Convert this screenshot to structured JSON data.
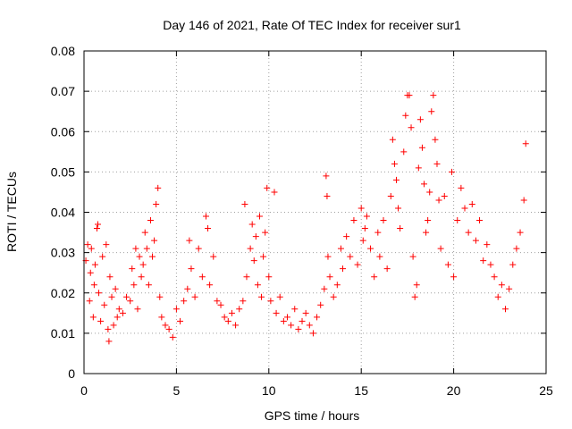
{
  "chart_data": {
    "type": "scatter",
    "title": "Day 146 of 2021, Rate Of TEC Index for receiver sur1",
    "xlabel": "GPS time / hours",
    "ylabel": "ROTI / TECUs",
    "xlim": [
      0,
      25
    ],
    "ylim": [
      0,
      0.08
    ],
    "xticks": [
      0,
      5,
      10,
      15,
      20,
      25
    ],
    "yticks": [
      0,
      0.01,
      0.02,
      0.03,
      0.04,
      0.05,
      0.06,
      0.07,
      0.08
    ],
    "xtick_labels": [
      "0",
      "5",
      "10",
      "15",
      "20",
      "25"
    ],
    "ytick_labels": [
      "0",
      "0.01",
      "0.02",
      "0.03",
      "0.04",
      "0.05",
      "0.06",
      "0.07",
      "0.08"
    ],
    "grid": true,
    "legend": false,
    "marker": "plus",
    "color": "#ff0000",
    "series": [
      {
        "points": [
          [
            0.1,
            0.028
          ],
          [
            0.2,
            0.032
          ],
          [
            0.3,
            0.018
          ],
          [
            0.35,
            0.025
          ],
          [
            0.4,
            0.031
          ],
          [
            0.5,
            0.014
          ],
          [
            0.55,
            0.022
          ],
          [
            0.6,
            0.027
          ],
          [
            0.7,
            0.036
          ],
          [
            0.75,
            0.037
          ],
          [
            0.8,
            0.02
          ],
          [
            0.9,
            0.013
          ],
          [
            1.0,
            0.029
          ],
          [
            1.1,
            0.017
          ],
          [
            1.2,
            0.032
          ],
          [
            1.3,
            0.011
          ],
          [
            1.35,
            0.008
          ],
          [
            1.4,
            0.024
          ],
          [
            1.5,
            0.019
          ],
          [
            1.6,
            0.012
          ],
          [
            1.7,
            0.021
          ],
          [
            1.8,
            0.014
          ],
          [
            1.9,
            0.016
          ],
          [
            2.1,
            0.015
          ],
          [
            2.3,
            0.019
          ],
          [
            2.5,
            0.018
          ],
          [
            2.6,
            0.026
          ],
          [
            2.7,
            0.022
          ],
          [
            2.8,
            0.031
          ],
          [
            2.9,
            0.016
          ],
          [
            3.0,
            0.029
          ],
          [
            3.1,
            0.024
          ],
          [
            3.2,
            0.027
          ],
          [
            3.3,
            0.035
          ],
          [
            3.4,
            0.031
          ],
          [
            3.5,
            0.022
          ],
          [
            3.6,
            0.038
          ],
          [
            3.7,
            0.029
          ],
          [
            3.8,
            0.033
          ],
          [
            3.9,
            0.042
          ],
          [
            4.0,
            0.046
          ],
          [
            4.1,
            0.019
          ],
          [
            4.2,
            0.014
          ],
          [
            4.4,
            0.012
          ],
          [
            4.6,
            0.011
          ],
          [
            4.8,
            0.009
          ],
          [
            5.0,
            0.016
          ],
          [
            5.2,
            0.013
          ],
          [
            5.4,
            0.018
          ],
          [
            5.6,
            0.021
          ],
          [
            5.7,
            0.033
          ],
          [
            5.8,
            0.026
          ],
          [
            6.0,
            0.019
          ],
          [
            6.2,
            0.031
          ],
          [
            6.4,
            0.024
          ],
          [
            6.6,
            0.039
          ],
          [
            6.7,
            0.036
          ],
          [
            6.8,
            0.022
          ],
          [
            7.0,
            0.029
          ],
          [
            7.2,
            0.018
          ],
          [
            7.4,
            0.017
          ],
          [
            7.6,
            0.014
          ],
          [
            7.8,
            0.013
          ],
          [
            8.0,
            0.015
          ],
          [
            8.2,
            0.012
          ],
          [
            8.4,
            0.016
          ],
          [
            8.6,
            0.018
          ],
          [
            8.7,
            0.042
          ],
          [
            8.8,
            0.024
          ],
          [
            9.0,
            0.031
          ],
          [
            9.1,
            0.037
          ],
          [
            9.2,
            0.028
          ],
          [
            9.3,
            0.034
          ],
          [
            9.4,
            0.022
          ],
          [
            9.5,
            0.039
          ],
          [
            9.6,
            0.019
          ],
          [
            9.7,
            0.029
          ],
          [
            9.8,
            0.035
          ],
          [
            9.9,
            0.046
          ],
          [
            10.0,
            0.024
          ],
          [
            10.1,
            0.018
          ],
          [
            10.3,
            0.045
          ],
          [
            10.4,
            0.015
          ],
          [
            10.6,
            0.019
          ],
          [
            10.8,
            0.013
          ],
          [
            11.0,
            0.014
          ],
          [
            11.2,
            0.012
          ],
          [
            11.4,
            0.016
          ],
          [
            11.6,
            0.011
          ],
          [
            11.8,
            0.013
          ],
          [
            12.0,
            0.015
          ],
          [
            12.2,
            0.012
          ],
          [
            12.4,
            0.01
          ],
          [
            12.6,
            0.014
          ],
          [
            12.8,
            0.017
          ],
          [
            13.0,
            0.021
          ],
          [
            13.1,
            0.049
          ],
          [
            13.15,
            0.044
          ],
          [
            13.2,
            0.029
          ],
          [
            13.3,
            0.024
          ],
          [
            13.5,
            0.019
          ],
          [
            13.7,
            0.022
          ],
          [
            13.9,
            0.031
          ],
          [
            14.0,
            0.026
          ],
          [
            14.2,
            0.034
          ],
          [
            14.4,
            0.029
          ],
          [
            14.6,
            0.038
          ],
          [
            14.8,
            0.027
          ],
          [
            15.0,
            0.041
          ],
          [
            15.1,
            0.033
          ],
          [
            15.2,
            0.036
          ],
          [
            15.3,
            0.039
          ],
          [
            15.5,
            0.031
          ],
          [
            15.7,
            0.024
          ],
          [
            15.9,
            0.035
          ],
          [
            16.0,
            0.029
          ],
          [
            16.2,
            0.038
          ],
          [
            16.4,
            0.026
          ],
          [
            16.6,
            0.044
          ],
          [
            16.7,
            0.058
          ],
          [
            16.8,
            0.052
          ],
          [
            16.9,
            0.048
          ],
          [
            17.0,
            0.041
          ],
          [
            17.1,
            0.036
          ],
          [
            17.3,
            0.055
          ],
          [
            17.4,
            0.064
          ],
          [
            17.5,
            0.069
          ],
          [
            17.6,
            0.069
          ],
          [
            17.7,
            0.061
          ],
          [
            17.8,
            0.029
          ],
          [
            17.9,
            0.019
          ],
          [
            18.0,
            0.022
          ],
          [
            18.1,
            0.051
          ],
          [
            18.2,
            0.063
          ],
          [
            18.3,
            0.056
          ],
          [
            18.4,
            0.047
          ],
          [
            18.5,
            0.035
          ],
          [
            18.6,
            0.038
          ],
          [
            18.7,
            0.045
          ],
          [
            18.8,
            0.065
          ],
          [
            18.9,
            0.069
          ],
          [
            19.0,
            0.058
          ],
          [
            19.1,
            0.052
          ],
          [
            19.2,
            0.043
          ],
          [
            19.3,
            0.031
          ],
          [
            19.5,
            0.044
          ],
          [
            19.7,
            0.027
          ],
          [
            19.9,
            0.05
          ],
          [
            20.0,
            0.024
          ],
          [
            20.2,
            0.038
          ],
          [
            20.4,
            0.046
          ],
          [
            20.6,
            0.041
          ],
          [
            20.8,
            0.035
          ],
          [
            21.0,
            0.042
          ],
          [
            21.2,
            0.033
          ],
          [
            21.4,
            0.038
          ],
          [
            21.6,
            0.028
          ],
          [
            21.8,
            0.032
          ],
          [
            22.0,
            0.027
          ],
          [
            22.2,
            0.024
          ],
          [
            22.4,
            0.019
          ],
          [
            22.6,
            0.022
          ],
          [
            22.8,
            0.016
          ],
          [
            23.0,
            0.021
          ],
          [
            23.2,
            0.027
          ],
          [
            23.4,
            0.031
          ],
          [
            23.6,
            0.035
          ],
          [
            23.8,
            0.043
          ],
          [
            23.9,
            0.057
          ]
        ]
      }
    ]
  }
}
